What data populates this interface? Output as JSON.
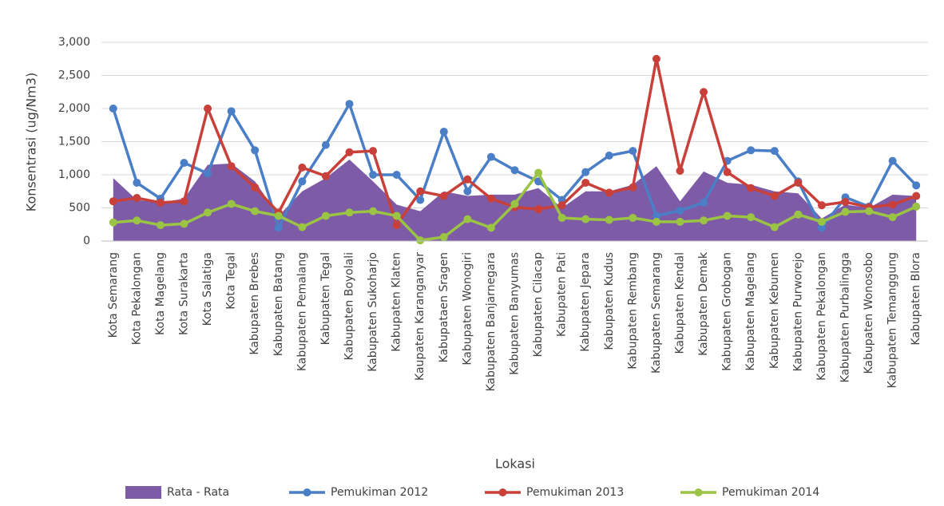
{
  "chart_data": {
    "type": "line",
    "y_label": "Konsentrasi (ug/Nm3)",
    "x_label": "Lokasi",
    "categories": [
      "Kota Semarang",
      "Kota Pekalongan",
      "Kota Magelang",
      "Kota Surakarta",
      "Kota Salatiga",
      "Kota Tegal",
      "Kabupaten Brebes",
      "Kabupaten Batang",
      "Kabupaten Pemalang",
      "Kabupaten Tegal",
      "Kabupaten Boyolali",
      "Kabupaten Sukoharjo",
      "Kabupaten Klaten",
      "Kaupaten Karanganyar",
      "Kabupataen Sragen",
      "Kabupaten Wonogiri",
      "Kabupaten Banjarnegara",
      "Kabupaten Banyumas",
      "Kabupaten Cilacap",
      "Kabupaten Pati",
      "Kabupaten Jepara",
      "Kabupaten Kudus",
      "Kabupaten Rembang",
      "Kabupaten Semarang",
      "Kabupaten Kendal",
      "Kabupaten Demak",
      "Kabupaten Grobogan",
      "Kabupaten Magelang",
      "Kabupaten Kebumen",
      "Kabupaten Purworejo",
      "Kabupaten Pekalongan",
      "Kabupaten Purbalingga",
      "Kabupaten Wonosobo",
      "Kabupaten Temanggung",
      "Kabupaten Blora"
    ],
    "series": [
      {
        "name": "Rata - Rata",
        "type": "area",
        "color": "#7d5ba6",
        "values": [
          950,
          620,
          580,
          640,
          1150,
          1170,
          900,
          380,
          750,
          950,
          1230,
          900,
          550,
          450,
          750,
          680,
          700,
          700,
          800,
          500,
          750,
          750,
          850,
          1130,
          600,
          1050,
          880,
          850,
          750,
          720,
          340,
          550,
          500,
          700,
          680
        ]
      },
      {
        "name": "Pemukiman 2012",
        "type": "line",
        "color": "#4a7ec6",
        "values": [
          2000,
          880,
          640,
          1180,
          1020,
          1960,
          1370,
          200,
          900,
          1450,
          2070,
          1000,
          1000,
          620,
          1650,
          750,
          1270,
          1070,
          900,
          620,
          1040,
          1290,
          1360,
          380,
          460,
          580,
          1210,
          1370,
          1360,
          900,
          200,
          660,
          520,
          1210,
          840
        ]
      },
      {
        "name": "Pemukiman 2013",
        "type": "line",
        "color": "#c9403a",
        "values": [
          600,
          650,
          580,
          600,
          2000,
          1130,
          810,
          430,
          1110,
          980,
          1340,
          1360,
          240,
          750,
          680,
          930,
          640,
          510,
          480,
          540,
          880,
          730,
          810,
          2750,
          1060,
          2250,
          1040,
          800,
          680,
          880,
          540,
          590,
          510,
          550,
          680
        ]
      },
      {
        "name": "Pemukiman 2014",
        "type": "line",
        "color": "#9bc444",
        "values": [
          280,
          310,
          240,
          260,
          430,
          560,
          450,
          380,
          210,
          380,
          430,
          450,
          380,
          10,
          60,
          330,
          200,
          560,
          1030,
          350,
          330,
          320,
          350,
          290,
          290,
          310,
          380,
          360,
          210,
          400,
          290,
          440,
          450,
          360,
          520
        ]
      }
    ],
    "ylim": [
      0,
      3000
    ],
    "yticks": [
      0,
      500,
      {
        "value": 1000,
        "label": "1,000"
      },
      {
        "value": 1500,
        "label": "1,500"
      },
      {
        "value": 2000,
        "label": "2,000"
      },
      {
        "value": 2500,
        "label": "2,500"
      },
      {
        "value": 3000,
        "label": "3,000"
      }
    ],
    "grid": true
  }
}
